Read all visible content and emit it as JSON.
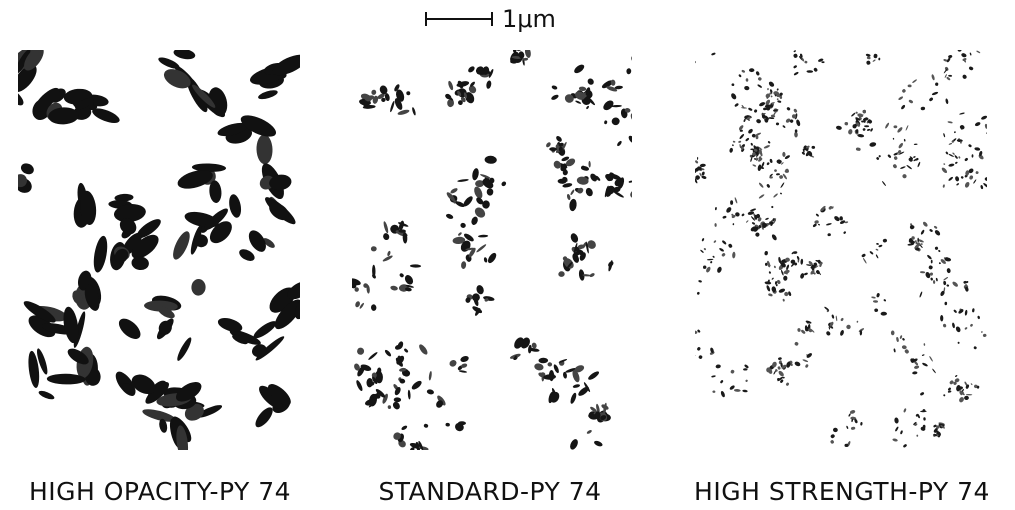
{
  "scale_bar": {
    "label": "1μm"
  },
  "panels": [
    {
      "caption": "HIGH OPACITY-PY 74"
    },
    {
      "caption": "STANDARD-PY 74"
    },
    {
      "caption": "HIGH STRENGTH-PY 74"
    }
  ]
}
